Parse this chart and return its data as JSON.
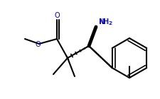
{
  "background": "#ffffff",
  "line_color": "#000000",
  "line_width": 1.5,
  "text_color": "#000000",
  "nh2_color": "#0000aa",
  "o_color": "#0000aa",
  "figsize": [
    2.26,
    1.4
  ],
  "dpi": 100
}
